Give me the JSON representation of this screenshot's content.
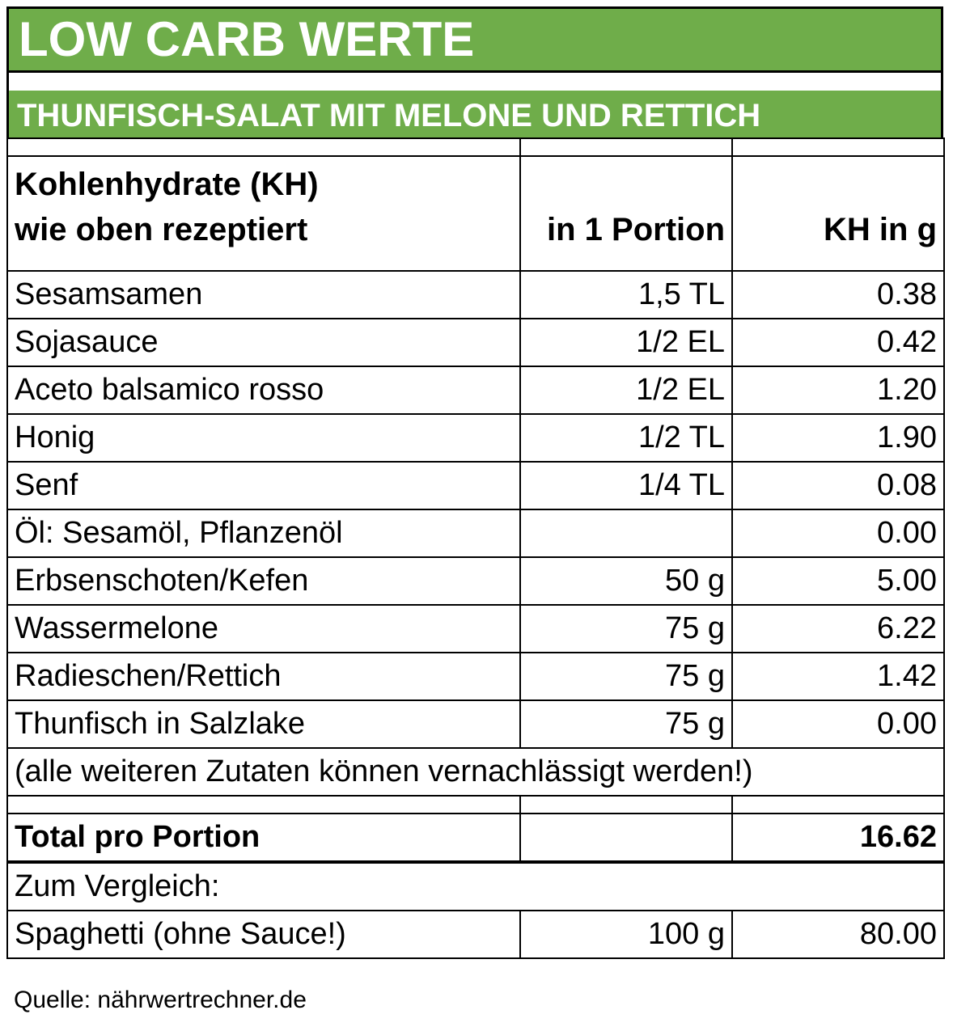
{
  "colors": {
    "green": "#6fad4a"
  },
  "title": "LOW CARB WERTE",
  "subtitle": "THUNFISCH-SALAT MIT MELONE UND RETTICH",
  "header": {
    "col1_line1": "Kohlenhydrate (KH)",
    "col1_line2": "wie oben rezeptiert",
    "col2": "in 1 Portion",
    "col3": "KH in g"
  },
  "rows": [
    {
      "name": "Sesamsamen",
      "portion": "1,5 TL",
      "kh": "0.38"
    },
    {
      "name": "Sojasauce",
      "portion": "1/2 EL",
      "kh": "0.42"
    },
    {
      "name": "Aceto balsamico rosso",
      "portion": "1/2 EL",
      "kh": "1.20"
    },
    {
      "name": "Honig",
      "portion": "1/2 TL",
      "kh": "1.90"
    },
    {
      "name": "Senf",
      "portion": "1/4 TL",
      "kh": "0.08"
    },
    {
      "name": "Öl: Sesamöl, Pflanzenöl",
      "portion": "",
      "kh": "0.00"
    },
    {
      "name": "Erbsenschoten/Kefen",
      "portion": "50 g",
      "kh": "5.00"
    },
    {
      "name": "Wassermelone",
      "portion": "75 g",
      "kh": "6.22"
    },
    {
      "name": "Radieschen/Rettich",
      "portion": "75 g",
      "kh": "1.42"
    },
    {
      "name": "Thunfisch in Salzlake",
      "portion": "75 g",
      "kh": "0.00"
    }
  ],
  "note": "(alle weiteren Zutaten können vernachlässigt werden!)",
  "total": {
    "label": "Total pro Portion",
    "value": "16.62"
  },
  "comparison": {
    "heading": "Zum Vergleich:",
    "name": "Spaghetti (ohne Sauce!)",
    "portion": "100 g",
    "kh": "80.00"
  },
  "source": "Quelle: nährwertrechner.de"
}
